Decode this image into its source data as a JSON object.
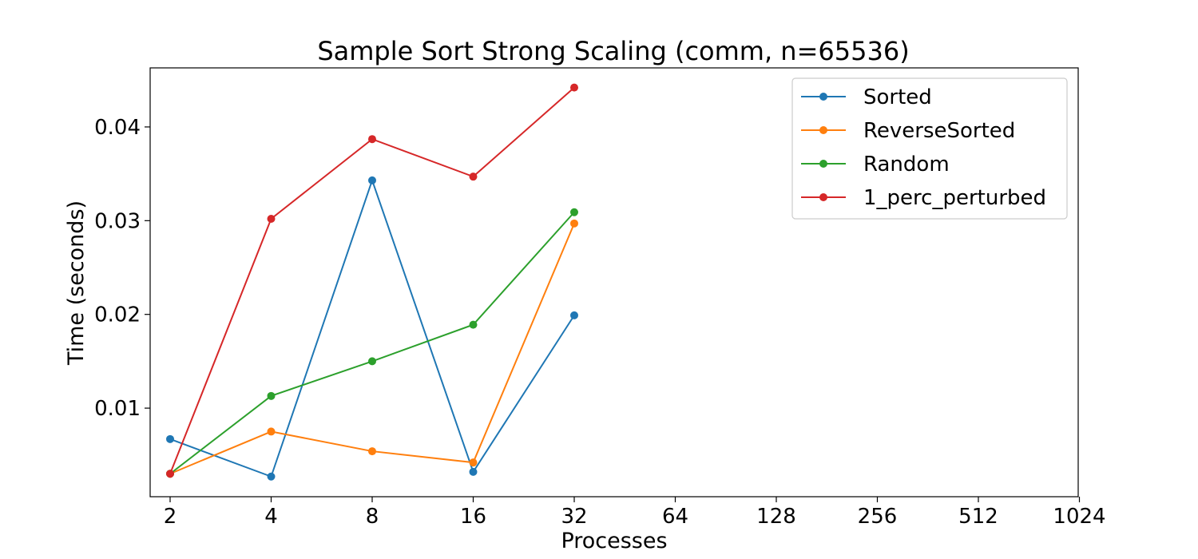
{
  "chart_data": {
    "type": "line",
    "title": "Sample Sort Strong Scaling (comm, n=65536)",
    "xlabel": "Processes",
    "ylabel": "Time (seconds)",
    "x_scale": "log2",
    "x_ticks": [
      2,
      4,
      8,
      16,
      32,
      64,
      128,
      256,
      512,
      1024
    ],
    "x_tick_labels": [
      "2",
      "4",
      "8",
      "16",
      "32",
      "64",
      "128",
      "256",
      "512",
      "1024"
    ],
    "y_ticks": [
      0.01,
      0.02,
      0.03,
      0.04
    ],
    "y_tick_labels": [
      "0.01",
      "0.02",
      "0.03",
      "0.04"
    ],
    "ylim": [
      0.00055,
      0.0463
    ],
    "grid": false,
    "legend_position": "top-right",
    "x": [
      2,
      4,
      8,
      16,
      32
    ],
    "series": [
      {
        "name": "Sorted",
        "color": "#1f77b4",
        "values": [
          0.0067,
          0.0027,
          0.0343,
          0.0032,
          0.0199
        ]
      },
      {
        "name": "ReverseSorted",
        "color": "#ff7f0e",
        "values": [
          0.003,
          0.0075,
          0.0054,
          0.0042,
          0.0297
        ]
      },
      {
        "name": "Random",
        "color": "#2ca02c",
        "values": [
          0.003,
          0.0113,
          0.015,
          0.0189,
          0.0309
        ]
      },
      {
        "name": "1_perc_perturbed",
        "color": "#d62728",
        "values": [
          0.003,
          0.0302,
          0.0387,
          0.0347,
          0.0442
        ]
      }
    ]
  }
}
